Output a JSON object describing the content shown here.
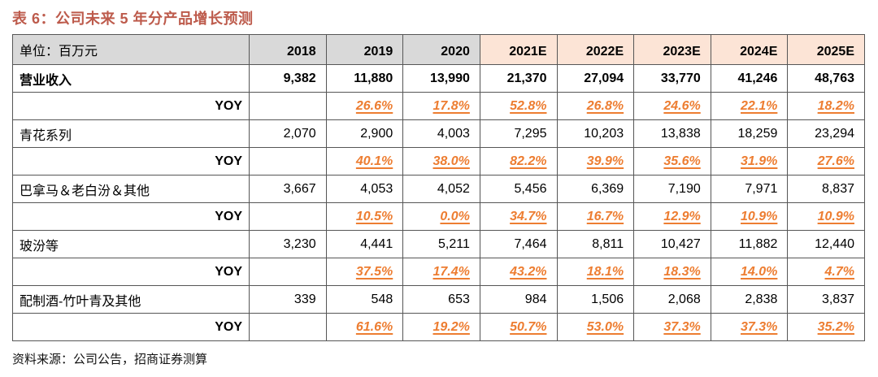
{
  "title": "表 6：公司未来 5 年分产品增长预测",
  "unit_label": "单位：百万元",
  "source_note": "资料来源：公司公告，招商证券测算",
  "colors": {
    "title_red": "#bd5b4c",
    "history_header_bg": "#d9d9d9",
    "forecast_header_bg": "#fce4d6",
    "yoy_orange": "#ed7d31",
    "border_gray": "#565656"
  },
  "chart_data": {
    "type": "table",
    "title": "表 6：公司未来 5 年分产品增长预测",
    "unit": "百万元",
    "columns": [
      "2018",
      "2019",
      "2020",
      "2021E",
      "2022E",
      "2023E",
      "2024E",
      "2025E"
    ],
    "history_columns": [
      "2018",
      "2019",
      "2020"
    ],
    "forecast_columns": [
      "2021E",
      "2022E",
      "2023E",
      "2024E",
      "2025E"
    ],
    "rows": [
      {
        "label": "营业收入",
        "kind": "bold",
        "values": [
          "9,382",
          "11,880",
          "13,990",
          "21,370",
          "27,094",
          "33,770",
          "41,246",
          "48,763"
        ]
      },
      {
        "label": "YOY",
        "kind": "yoy",
        "values": [
          "",
          "26.6%",
          "17.8%",
          "52.8%",
          "26.8%",
          "24.6%",
          "22.1%",
          "18.2%"
        ]
      },
      {
        "label": "青花系列",
        "kind": "normal",
        "values": [
          "2,070",
          "2,900",
          "4,003",
          "7,295",
          "10,203",
          "13,838",
          "18,259",
          "23,294"
        ]
      },
      {
        "label": "YOY",
        "kind": "yoy",
        "values": [
          "",
          "40.1%",
          "38.0%",
          "82.2%",
          "39.9%",
          "35.6%",
          "31.9%",
          "27.6%"
        ]
      },
      {
        "label": "巴拿马＆老白汾＆其他",
        "kind": "normal",
        "values": [
          "3,667",
          "4,053",
          "4,052",
          "5,456",
          "6,369",
          "7,190",
          "7,971",
          "8,837"
        ]
      },
      {
        "label": "YOY",
        "kind": "yoy",
        "values": [
          "",
          "10.5%",
          "0.0%",
          "34.7%",
          "16.7%",
          "12.9%",
          "10.9%",
          "10.9%"
        ]
      },
      {
        "label": "玻汾等",
        "kind": "normal",
        "values": [
          "3,230",
          "4,441",
          "5,211",
          "7,464",
          "8,811",
          "10,427",
          "11,882",
          "12,440"
        ]
      },
      {
        "label": "YOY",
        "kind": "yoy",
        "values": [
          "",
          "37.5%",
          "17.4%",
          "43.2%",
          "18.1%",
          "18.3%",
          "14.0%",
          "4.7%"
        ]
      },
      {
        "label": "配制酒-竹叶青及其他",
        "kind": "normal",
        "values": [
          "339",
          "548",
          "653",
          "984",
          "1,506",
          "2,068",
          "2,838",
          "3,837"
        ]
      },
      {
        "label": "YOY",
        "kind": "yoy",
        "values": [
          "",
          "61.6%",
          "19.2%",
          "50.7%",
          "53.0%",
          "37.3%",
          "37.3%",
          "35.2%"
        ]
      }
    ]
  }
}
